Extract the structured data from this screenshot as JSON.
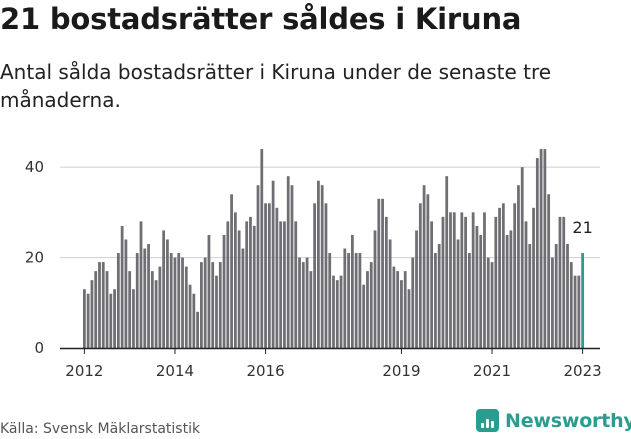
{
  "header": {
    "title": "21 bostadsrätter såldes i Kiruna",
    "subtitle": "Antal sålda bostadsrätter i Kiruna under de senaste tre månaderna."
  },
  "footer": {
    "source": "Källa: Svensk Mäklarstatistik",
    "brand": "Newsworthy",
    "brand_icon": "newsworthy-logo-icon"
  },
  "colors": {
    "bar": "#6e6e73",
    "highlight": "#2a9d8f",
    "grid": "#cfcfcf",
    "axis": "#222222"
  },
  "chart_data": {
    "type": "bar",
    "title": "21 bostadsrätter såldes i Kiruna",
    "subtitle": "Antal sålda bostadsrätter i Kiruna under de senaste tre månaderna.",
    "x_start": "2012-01",
    "x_end": "2023-03",
    "ylim": [
      0,
      46
    ],
    "yticks": [
      0,
      20,
      40
    ],
    "xticks": [
      {
        "label": "2012",
        "index": 0
      },
      {
        "label": "2014",
        "index": 24
      },
      {
        "label": "2016",
        "index": 48
      },
      {
        "label": "2019",
        "index": 84
      },
      {
        "label": "2021",
        "index": 108
      },
      {
        "label": "2023",
        "index": 132
      }
    ],
    "highlight_label": "21",
    "grid": true,
    "values": [
      13,
      12,
      15,
      17,
      19,
      19,
      17,
      12,
      13,
      21,
      27,
      24,
      17,
      13,
      21,
      28,
      22,
      23,
      17,
      15,
      18,
      26,
      24,
      21,
      20,
      21,
      20,
      18,
      14,
      12,
      8,
      19,
      20,
      25,
      19,
      16,
      19,
      25,
      28,
      34,
      30,
      26,
      22,
      28,
      29,
      27,
      36,
      44,
      32,
      32,
      37,
      31,
      28,
      28,
      38,
      36,
      28,
      20,
      19,
      20,
      17,
      32,
      37,
      36,
      32,
      21,
      16,
      15,
      16,
      22,
      21,
      25,
      21,
      21,
      14,
      17,
      19,
      26,
      33,
      33,
      29,
      24,
      18,
      17,
      15,
      17,
      13,
      20,
      26,
      32,
      36,
      34,
      28,
      21,
      23,
      29,
      38,
      30,
      30,
      24,
      30,
      29,
      21,
      30,
      27,
      25,
      30,
      20,
      19,
      29,
      31,
      32,
      25,
      26,
      32,
      36,
      40,
      28,
      23,
      31,
      42,
      44,
      44,
      34,
      20,
      23,
      29,
      29,
      23,
      19,
      16,
      16,
      21
    ]
  }
}
